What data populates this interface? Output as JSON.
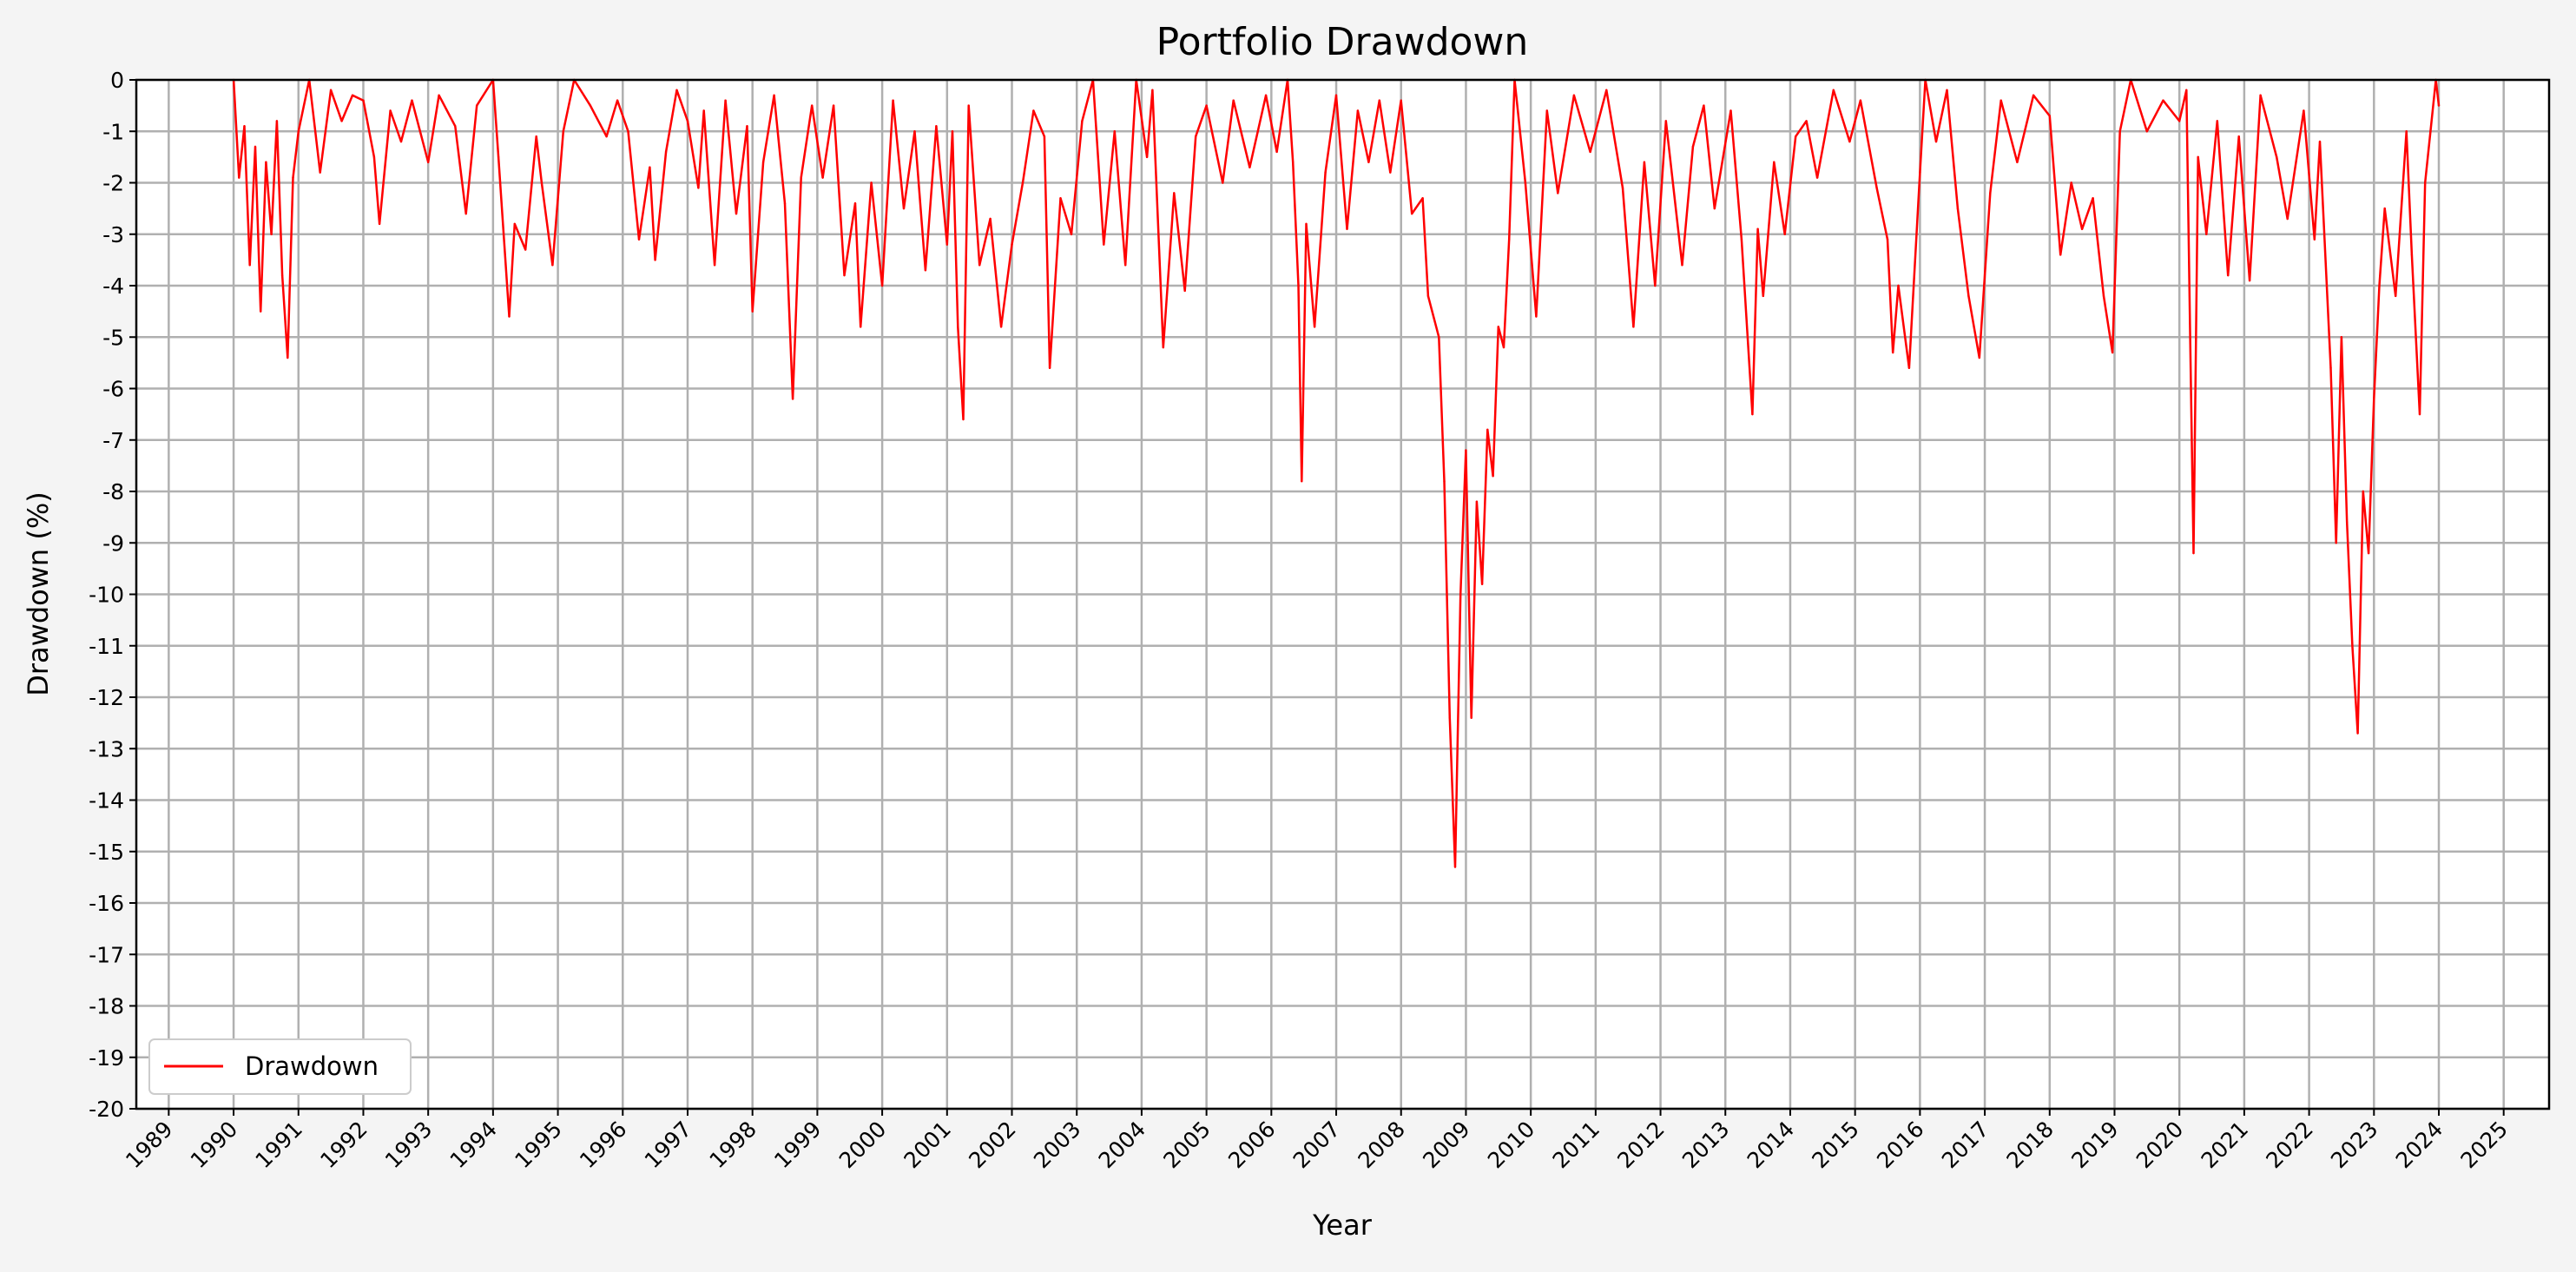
{
  "chart_data": {
    "type": "line",
    "title": "Portfolio Drawdown",
    "xlabel": "Year",
    "ylabel": "Drawdown (%)",
    "xlim": [
      1988.5,
      2025.7
    ],
    "ylim": [
      -20,
      0
    ],
    "x_ticks": [
      "1989",
      "1990",
      "1991",
      "1992",
      "1993",
      "1994",
      "1995",
      "1996",
      "1997",
      "1998",
      "1999",
      "2000",
      "2001",
      "2002",
      "2003",
      "2004",
      "2005",
      "2006",
      "2007",
      "2008",
      "2009",
      "2010",
      "2011",
      "2012",
      "2013",
      "2014",
      "2015",
      "2016",
      "2017",
      "2018",
      "2019",
      "2020",
      "2021",
      "2022",
      "2023",
      "2024",
      "2025"
    ],
    "y_ticks": [
      "0",
      "-1",
      "-2",
      "-3",
      "-4",
      "-5",
      "-6",
      "-7",
      "-8",
      "-9",
      "-10",
      "-11",
      "-12",
      "-13",
      "-14",
      "-15",
      "-16",
      "-17",
      "-18",
      "-19",
      "-20"
    ],
    "grid": true,
    "legend": {
      "position": "lower-left",
      "entries": [
        "Drawdown"
      ]
    },
    "colors": {
      "line": "#ff0000",
      "grid": "#b0b0b0",
      "background": "#f4f4f4",
      "plot_background": "#ffffff"
    },
    "series": [
      {
        "name": "Drawdown",
        "points": [
          [
            "1990-01-01",
            0
          ],
          [
            "1990-02-01",
            -1.9
          ],
          [
            "1990-03-01",
            -0.9
          ],
          [
            "1990-04-01",
            -3.6
          ],
          [
            "1990-05-01",
            -1.3
          ],
          [
            "1990-06-01",
            -4.5
          ],
          [
            "1990-07-01",
            -1.6
          ],
          [
            "1990-08-01",
            -3.0
          ],
          [
            "1990-09-01",
            -0.8
          ],
          [
            "1990-10-01",
            -3.8
          ],
          [
            "1990-11-01",
            -5.4
          ],
          [
            "1990-12-01",
            -1.9
          ],
          [
            "1991-01-01",
            -1.0
          ],
          [
            "1991-03-01",
            0
          ],
          [
            "1991-05-01",
            -1.8
          ],
          [
            "1991-07-01",
            -0.2
          ],
          [
            "1991-09-01",
            -0.8
          ],
          [
            "1991-11-01",
            -0.3
          ],
          [
            "1992-01-01",
            -0.4
          ],
          [
            "1992-03-01",
            -1.5
          ],
          [
            "1992-04-01",
            -2.8
          ],
          [
            "1992-06-01",
            -0.6
          ],
          [
            "1992-08-01",
            -1.2
          ],
          [
            "1992-10-01",
            -0.4
          ],
          [
            "1993-01-01",
            -1.6
          ],
          [
            "1993-03-01",
            -0.3
          ],
          [
            "1993-06-01",
            -0.9
          ],
          [
            "1993-08-01",
            -2.6
          ],
          [
            "1993-10-01",
            -0.5
          ],
          [
            "1994-01-01",
            0
          ],
          [
            "1994-02-01",
            -1.5
          ],
          [
            "1994-04-01",
            -4.6
          ],
          [
            "1994-05-01",
            -2.8
          ],
          [
            "1994-07-01",
            -3.3
          ],
          [
            "1994-09-01",
            -1.1
          ],
          [
            "1994-10-01",
            -2.0
          ],
          [
            "1994-12-01",
            -3.6
          ],
          [
            "1995-02-01",
            -1.0
          ],
          [
            "1995-04-01",
            0
          ],
          [
            "1995-07-01",
            -0.5
          ],
          [
            "1995-10-01",
            -1.1
          ],
          [
            "1995-12-01",
            -0.4
          ],
          [
            "1996-02-01",
            -1.0
          ],
          [
            "1996-04-01",
            -3.1
          ],
          [
            "1996-06-01",
            -1.7
          ],
          [
            "1996-07-01",
            -3.5
          ],
          [
            "1996-09-01",
            -1.4
          ],
          [
            "1996-11-01",
            -0.2
          ],
          [
            "1997-01-01",
            -0.8
          ],
          [
            "1997-03-01",
            -2.1
          ],
          [
            "1997-04-01",
            -0.6
          ],
          [
            "1997-06-01",
            -3.6
          ],
          [
            "1997-08-01",
            -0.4
          ],
          [
            "1997-10-01",
            -2.6
          ],
          [
            "1997-12-01",
            -0.9
          ],
          [
            "1998-01-01",
            -4.5
          ],
          [
            "1998-03-01",
            -1.6
          ],
          [
            "1998-05-01",
            -0.3
          ],
          [
            "1998-07-01",
            -2.4
          ],
          [
            "1998-08-15",
            -6.2
          ],
          [
            "1998-10-01",
            -1.9
          ],
          [
            "1998-12-01",
            -0.5
          ],
          [
            "1999-02-01",
            -1.9
          ],
          [
            "1999-04-01",
            -0.5
          ],
          [
            "1999-06-01",
            -3.8
          ],
          [
            "1999-08-01",
            -2.4
          ],
          [
            "1999-09-01",
            -4.8
          ],
          [
            "1999-11-01",
            -2.0
          ],
          [
            "2000-01-01",
            -4.0
          ],
          [
            "2000-03-01",
            -0.4
          ],
          [
            "2000-05-01",
            -2.5
          ],
          [
            "2000-07-01",
            -1.0
          ],
          [
            "2000-09-01",
            -3.7
          ],
          [
            "2000-11-01",
            -0.9
          ],
          [
            "2001-01-01",
            -3.2
          ],
          [
            "2001-02-01",
            -1.0
          ],
          [
            "2001-03-01",
            -4.8
          ],
          [
            "2001-04-01",
            -6.6
          ],
          [
            "2001-05-01",
            -0.5
          ],
          [
            "2001-07-01",
            -3.6
          ],
          [
            "2001-09-01",
            -2.7
          ],
          [
            "2001-11-01",
            -4.8
          ],
          [
            "2002-01-01",
            -3.2
          ],
          [
            "2002-03-01",
            -2.0
          ],
          [
            "2002-05-01",
            -0.6
          ],
          [
            "2002-07-01",
            -1.1
          ],
          [
            "2002-08-01",
            -5.6
          ],
          [
            "2002-10-01",
            -2.3
          ],
          [
            "2002-12-01",
            -3.0
          ],
          [
            "2003-02-01",
            -0.8
          ],
          [
            "2003-04-01",
            0
          ],
          [
            "2003-06-01",
            -3.2
          ],
          [
            "2003-08-01",
            -1.0
          ],
          [
            "2003-10-01",
            -3.6
          ],
          [
            "2003-12-01",
            0
          ],
          [
            "2004-02-01",
            -1.5
          ],
          [
            "2004-03-01",
            -0.2
          ],
          [
            "2004-05-01",
            -5.2
          ],
          [
            "2004-07-01",
            -2.2
          ],
          [
            "2004-09-01",
            -4.1
          ],
          [
            "2004-11-01",
            -1.1
          ],
          [
            "2005-01-01",
            -0.5
          ],
          [
            "2005-04-01",
            -2.0
          ],
          [
            "2005-06-01",
            -0.4
          ],
          [
            "2005-09-01",
            -1.7
          ],
          [
            "2005-12-01",
            -0.3
          ],
          [
            "2006-02-01",
            -1.4
          ],
          [
            "2006-04-01",
            0
          ],
          [
            "2006-05-01",
            -1.6
          ],
          [
            "2006-06-01",
            -4.0
          ],
          [
            "2006-06-20",
            -7.8
          ],
          [
            "2006-07-15",
            -2.8
          ],
          [
            "2006-09-01",
            -4.8
          ],
          [
            "2006-11-01",
            -1.8
          ],
          [
            "2007-01-01",
            -0.3
          ],
          [
            "2007-03-01",
            -2.9
          ],
          [
            "2007-05-01",
            -0.6
          ],
          [
            "2007-07-01",
            -1.6
          ],
          [
            "2007-09-01",
            -0.4
          ],
          [
            "2007-11-01",
            -1.8
          ],
          [
            "2008-01-01",
            -0.4
          ],
          [
            "2008-03-01",
            -2.6
          ],
          [
            "2008-05-01",
            -2.3
          ],
          [
            "2008-06-01",
            -4.2
          ],
          [
            "2008-08-01",
            -5.0
          ],
          [
            "2008-09-01",
            -7.8
          ],
          [
            "2008-10-01",
            -12.4
          ],
          [
            "2008-11-01",
            -15.3
          ],
          [
            "2008-12-01",
            -10.0
          ],
          [
            "2009-01-01",
            -7.2
          ],
          [
            "2009-02-01",
            -12.4
          ],
          [
            "2009-03-01",
            -8.2
          ],
          [
            "2009-04-01",
            -9.8
          ],
          [
            "2009-05-01",
            -6.8
          ],
          [
            "2009-06-01",
            -7.7
          ],
          [
            "2009-07-01",
            -4.8
          ],
          [
            "2009-08-01",
            -5.2
          ],
          [
            "2009-09-01",
            -3.1
          ],
          [
            "2009-10-01",
            0
          ],
          [
            "2009-12-01",
            -2.0
          ],
          [
            "2010-02-01",
            -4.6
          ],
          [
            "2010-04-01",
            -0.6
          ],
          [
            "2010-06-01",
            -2.2
          ],
          [
            "2010-09-01",
            -0.3
          ],
          [
            "2010-12-01",
            -1.4
          ],
          [
            "2011-03-01",
            -0.2
          ],
          [
            "2011-06-01",
            -2.1
          ],
          [
            "2011-08-01",
            -4.8
          ],
          [
            "2011-10-01",
            -1.6
          ],
          [
            "2011-12-01",
            -4.0
          ],
          [
            "2012-02-01",
            -0.8
          ],
          [
            "2012-05-01",
            -3.6
          ],
          [
            "2012-07-01",
            -1.3
          ],
          [
            "2012-09-01",
            -0.5
          ],
          [
            "2012-11-01",
            -2.5
          ],
          [
            "2013-02-01",
            -0.6
          ],
          [
            "2013-04-01",
            -3.1
          ],
          [
            "2013-06-01",
            -6.5
          ],
          [
            "2013-07-01",
            -2.9
          ],
          [
            "2013-08-01",
            -4.2
          ],
          [
            "2013-10-01",
            -1.6
          ],
          [
            "2013-12-01",
            -3.0
          ],
          [
            "2014-02-01",
            -1.1
          ],
          [
            "2014-04-01",
            -0.8
          ],
          [
            "2014-06-01",
            -1.9
          ],
          [
            "2014-09-01",
            -0.2
          ],
          [
            "2014-12-01",
            -1.2
          ],
          [
            "2015-02-01",
            -0.4
          ],
          [
            "2015-05-01",
            -2.1
          ],
          [
            "2015-07-01",
            -3.1
          ],
          [
            "2015-08-01",
            -5.3
          ],
          [
            "2015-09-01",
            -4.0
          ],
          [
            "2015-11-01",
            -5.6
          ],
          [
            "2016-01-01",
            -1.8
          ],
          [
            "2016-02-01",
            0
          ],
          [
            "2016-04-01",
            -1.2
          ],
          [
            "2016-06-01",
            -0.2
          ],
          [
            "2016-08-01",
            -2.5
          ],
          [
            "2016-10-01",
            -4.2
          ],
          [
            "2016-12-01",
            -5.4
          ],
          [
            "2017-02-01",
            -2.2
          ],
          [
            "2017-04-01",
            -0.4
          ],
          [
            "2017-07-01",
            -1.6
          ],
          [
            "2017-10-01",
            -0.3
          ],
          [
            "2018-01-01",
            -0.7
          ],
          [
            "2018-03-01",
            -3.4
          ],
          [
            "2018-05-01",
            -2.0
          ],
          [
            "2018-07-01",
            -2.9
          ],
          [
            "2018-09-01",
            -2.3
          ],
          [
            "2018-11-01",
            -4.2
          ],
          [
            "2018-12-20",
            -5.3
          ],
          [
            "2019-02-01",
            -1.0
          ],
          [
            "2019-04-01",
            0
          ],
          [
            "2019-07-01",
            -1.0
          ],
          [
            "2019-10-01",
            -0.4
          ],
          [
            "2020-01-01",
            -0.8
          ],
          [
            "2020-02-10",
            -0.2
          ],
          [
            "2020-03-01",
            -5.0
          ],
          [
            "2020-03-20",
            -9.2
          ],
          [
            "2020-04-15",
            -1.5
          ],
          [
            "2020-06-01",
            -3.0
          ],
          [
            "2020-08-01",
            -0.8
          ],
          [
            "2020-10-01",
            -3.8
          ],
          [
            "2020-12-01",
            -1.1
          ],
          [
            "2021-02-01",
            -3.9
          ],
          [
            "2021-04-01",
            -0.3
          ],
          [
            "2021-07-01",
            -1.5
          ],
          [
            "2021-09-01",
            -2.7
          ],
          [
            "2021-12-01",
            -0.6
          ],
          [
            "2022-02-01",
            -3.1
          ],
          [
            "2022-03-01",
            -1.2
          ],
          [
            "2022-05-01",
            -5.6
          ],
          [
            "2022-06-01",
            -9.0
          ],
          [
            "2022-07-01",
            -5.0
          ],
          [
            "2022-08-01",
            -8.6
          ],
          [
            "2022-09-01",
            -11.0
          ],
          [
            "2022-10-01",
            -12.7
          ],
          [
            "2022-11-01",
            -8.0
          ],
          [
            "2022-12-01",
            -9.2
          ],
          [
            "2023-01-01",
            -6.2
          ],
          [
            "2023-02-01",
            -4.0
          ],
          [
            "2023-03-01",
            -2.5
          ],
          [
            "2023-05-01",
            -4.2
          ],
          [
            "2023-07-01",
            -1.0
          ],
          [
            "2023-08-01",
            -3.4
          ],
          [
            "2023-09-15",
            -6.5
          ],
          [
            "2023-10-15",
            -2.0
          ],
          [
            "2023-11-15",
            -1.0
          ],
          [
            "2023-12-15",
            0
          ],
          [
            "2024-01-01",
            -0.5
          ]
        ]
      }
    ]
  }
}
